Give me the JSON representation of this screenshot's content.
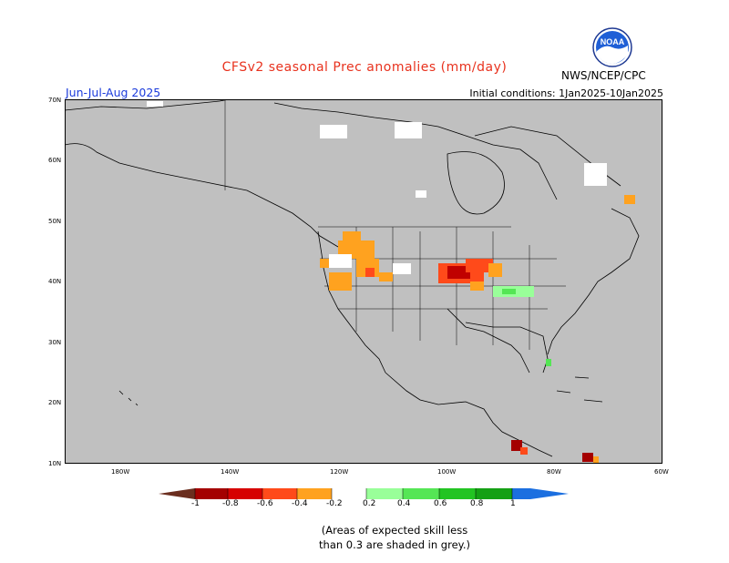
{
  "header": {
    "title": "CFSv2 seasonal Prec anomalies (mm/day)",
    "period": "Jun-Jul-Aug 2025",
    "initial_conditions": "Initial conditions: 1Jan2025-10Jan2025",
    "agency": "NWS/NCEP/CPC",
    "logo_text": "NOAA"
  },
  "map": {
    "lat_labels": [
      "70N",
      "60N",
      "50N",
      "40N",
      "30N",
      "20N",
      "10N"
    ],
    "lon_labels": [
      "180W",
      "140W",
      "120W",
      "100W",
      "80W",
      "60W"
    ],
    "background_color": "#c0c0c0",
    "regions": [
      {
        "name": "Great Basin / Northern Rockies",
        "anomaly": "-0.2 to -0.4",
        "color": "#ffa21f"
      },
      {
        "name": "Central Plains (Kansas/Nebraska/Iowa)",
        "anomaly": "-0.6 to -1",
        "color": "#c00000"
      },
      {
        "name": "Ohio Valley",
        "anomaly": "0.2 to 0.4",
        "color": "#99ff99"
      },
      {
        "name": "Central America",
        "anomaly": "-0.6 to -1",
        "color": "#a40000"
      }
    ]
  },
  "colorbar": {
    "ticks": [
      "-1",
      "-0.8",
      "-0.6",
      "-0.4",
      "-0.2",
      "0.2",
      "0.4",
      "0.6",
      "0.8",
      "1"
    ],
    "colors": [
      "#6b2e1f",
      "#a40000",
      "#d60000",
      "#ff4a1a",
      "#ffa21f",
      "#ffffff",
      "#99ff99",
      "#55e655",
      "#22c422",
      "#14a014",
      "#1b6fe0"
    ]
  },
  "footnote": {
    "line1": "(Areas of expected skill less",
    "line2": "than 0.3 are shaded in grey.)"
  }
}
